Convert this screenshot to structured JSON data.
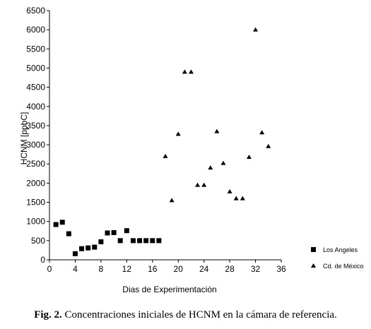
{
  "chart_data": {
    "type": "scatter",
    "xlabel": "Dias de Experimentación",
    "ylabel": "HCNM  [ppbC]",
    "xlim": [
      0,
      36
    ],
    "ylim": [
      0,
      6500
    ],
    "xticks": [
      0,
      4,
      8,
      12,
      16,
      20,
      24,
      28,
      32,
      36
    ],
    "yticks": [
      0,
      500,
      1000,
      1500,
      2000,
      2500,
      3000,
      3500,
      4000,
      4500,
      5000,
      5500,
      6000,
      6500
    ],
    "grid": false,
    "legend_position": "bottom-right",
    "series": [
      {
        "name": "Los Angeles",
        "marker": "square",
        "color": "#000000",
        "x": [
          1,
          2,
          3,
          4,
          5,
          6,
          7,
          8,
          9,
          10,
          11,
          12,
          13,
          14,
          15,
          16,
          17
        ],
        "y": [
          920,
          980,
          680,
          160,
          290,
          310,
          330,
          470,
          700,
          710,
          500,
          760,
          500,
          500,
          500,
          500,
          500
        ]
      },
      {
        "name": "Cd. de México",
        "marker": "triangle",
        "color": "#000000",
        "x": [
          18,
          19,
          20,
          21,
          22,
          23,
          24,
          25,
          26,
          27,
          28,
          29,
          30,
          31,
          32,
          33,
          34
        ],
        "y": [
          2700,
          1550,
          3280,
          4900,
          4900,
          1950,
          1950,
          2400,
          3350,
          2520,
          1780,
          1600,
          1600,
          2680,
          6000,
          3320,
          2960
        ]
      }
    ]
  },
  "caption": {
    "label": "Fig. 2.",
    "text": " Concentraciones iniciales de HCNM en la cámara de referencia."
  }
}
